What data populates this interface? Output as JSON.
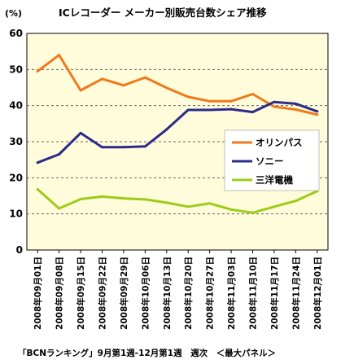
{
  "chart_data": {
    "type": "line",
    "title": "ICレコーダー メーカー別販売台数シェア推移",
    "unit_label": "(%)",
    "footnote": "「BCNランキング」9月第1週-12月第1週　週次　＜最大パネル＞",
    "ylim": [
      0,
      60
    ],
    "yticks": [
      0,
      10,
      20,
      30,
      40,
      50,
      60
    ],
    "grid": true,
    "legend_position": "right",
    "categories": [
      "2008年09月01日",
      "2008年09月08日",
      "2008年09月15日",
      "2008年09月22日",
      "2008年09月29日",
      "2008年10月06日",
      "2008年10月13日",
      "2008年10月20日",
      "2008年10月27日",
      "2008年11月03日",
      "2008年11月10日",
      "2008年11月17日",
      "2008年11月24日",
      "2008年12月01日"
    ],
    "series": [
      {
        "name": "オリンパス",
        "color": "#f07a1a",
        "values": [
          49.5,
          54.0,
          44.2,
          47.4,
          45.6,
          47.8,
          44.9,
          42.4,
          41.2,
          41.2,
          43.2,
          39.7,
          38.9,
          37.5
        ]
      },
      {
        "name": "ソニー",
        "color": "#2b2b8a",
        "values": [
          24.2,
          26.5,
          32.4,
          28.5,
          28.5,
          28.7,
          33.4,
          38.8,
          38.8,
          39.0,
          38.2,
          41.0,
          40.5,
          38.4
        ]
      },
      {
        "name": "三洋電機",
        "color": "#9ccc1a",
        "values": [
          16.8,
          11.5,
          14.1,
          14.8,
          14.3,
          14.0,
          13.1,
          12.0,
          12.9,
          11.2,
          10.3,
          12.0,
          13.6,
          16.3
        ]
      }
    ]
  },
  "colors": {
    "plot_background": "#fffcdb",
    "grid": "#666666"
  }
}
